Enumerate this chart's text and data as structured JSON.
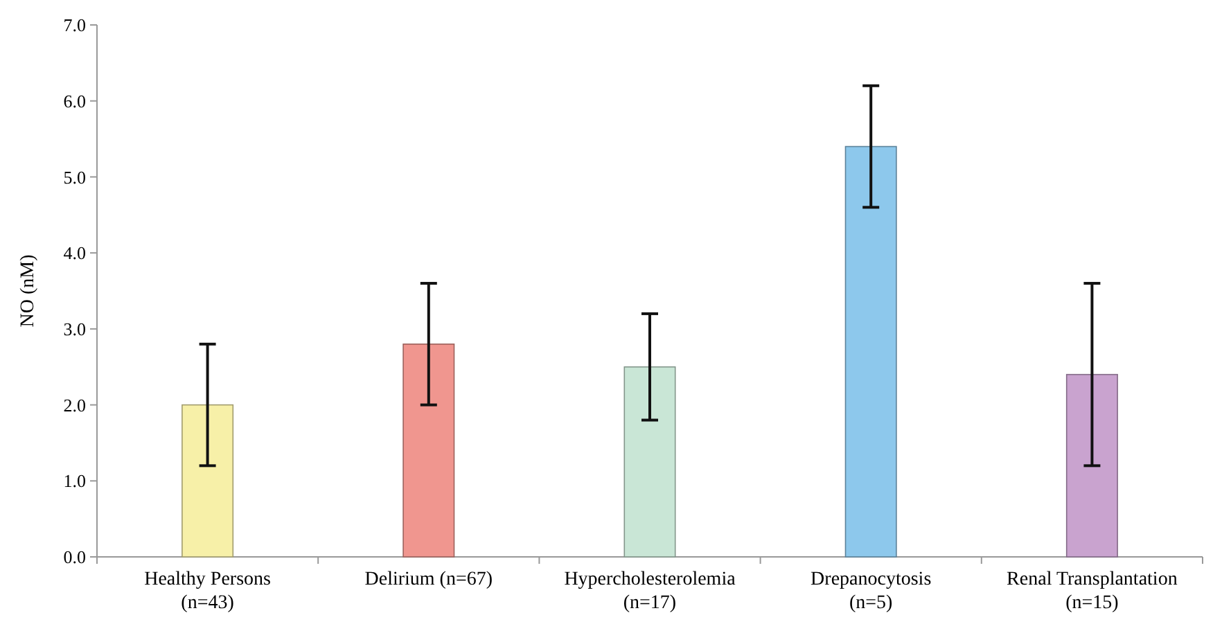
{
  "chart_data": {
    "type": "bar",
    "ylabel": "NO (nM)",
    "categories": [
      "Healthy Persons\n(n=43)",
      "Delirium (n=67)",
      "Hypercholesterolemia\n(n=17)",
      "Drepanocytosis\n(n=5)",
      "Renal Transplantation\n(n=15)"
    ],
    "values": [
      2.0,
      2.8,
      2.5,
      5.4,
      2.4
    ],
    "errors": [
      0.8,
      0.8,
      0.7,
      0.8,
      1.2
    ],
    "colors": [
      "#f7f0a8",
      "#f0968f",
      "#c9e6d6",
      "#8dc8ec",
      "#c9a3cf"
    ],
    "ylim": [
      0,
      7
    ],
    "yticks": [
      {
        "value": 0,
        "label": "0.0"
      },
      {
        "value": 1,
        "label": "1.0"
      },
      {
        "value": 2,
        "label": "2.0"
      },
      {
        "value": 3,
        "label": "3.0"
      },
      {
        "value": 4,
        "label": "4.0"
      },
      {
        "value": 5,
        "label": "5.0"
      },
      {
        "value": 6,
        "label": "6.0"
      },
      {
        "value": 7,
        "label": "7.0"
      }
    ],
    "grid": false
  }
}
